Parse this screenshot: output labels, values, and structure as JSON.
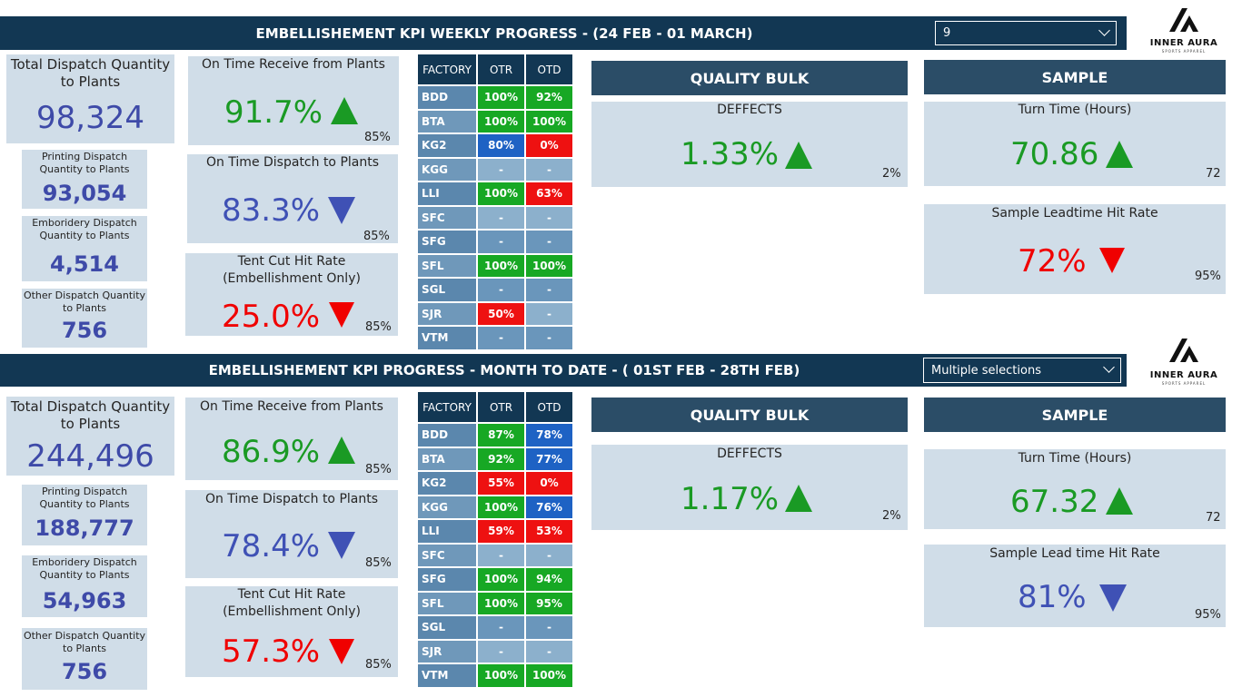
{
  "weekly": {
    "header": "EMBELLISHEMENT KPI  WEEKLY PROGRESS - (24 FEB - 01 MARCH)",
    "slicer": "9",
    "total_dispatch": {
      "title": "Total Dispatch Quantity to Plants",
      "value": "98,324"
    },
    "printing": {
      "title": "Printing Dispatch Quantity to Plants",
      "value": "93,054"
    },
    "embroidery": {
      "title": "Emboridery Dispatch Quantity to Plants",
      "value": "4,514"
    },
    "other": {
      "title": "Other Dispatch Quantity to Plants",
      "value": "756"
    },
    "otr": {
      "title": "On Time Receive from Plants",
      "value": "91.7%",
      "target": "85%",
      "trend": "up"
    },
    "otd": {
      "title": "On Time Dispatch to Plants",
      "value": "83.3%",
      "target": "85%",
      "trend": "down"
    },
    "tent": {
      "title": "Tent Cut Hit Rate (Embellishment Only)",
      "value": "25.0%",
      "target": "85%",
      "trend": "down"
    },
    "table": {
      "headers": [
        "FACTORY",
        "OTR",
        "OTD"
      ],
      "rows": [
        [
          "BDD",
          "100%",
          "92%"
        ],
        [
          "BTA",
          "100%",
          "100%"
        ],
        [
          "KG2",
          "80%",
          "0%"
        ],
        [
          "KGG",
          "-",
          "-"
        ],
        [
          "LLI",
          "100%",
          "63%"
        ],
        [
          "SFC",
          "-",
          "-"
        ],
        [
          "SFG",
          "-",
          "-"
        ],
        [
          "SFL",
          "100%",
          "100%"
        ],
        [
          "SGL",
          "-",
          "-"
        ],
        [
          "SJR",
          "50%",
          "-"
        ],
        [
          "VTM",
          "-",
          "-"
        ]
      ]
    },
    "quality": {
      "head": "QUALITY BULK",
      "title": "DEFFECTS",
      "value": "1.33%",
      "target": "2%"
    },
    "sample": {
      "head": "SAMPLE",
      "turn_title": "Turn Time (Hours)",
      "turn_value": "70.86",
      "turn_target": "72",
      "lead_title": "Sample Leadtime Hit Rate",
      "lead_value": "72%",
      "lead_target": "95%"
    }
  },
  "monthly": {
    "header": "EMBELLISHEMENT KPI  PROGRESS - MONTH TO DATE - ( 01ST FEB - 28TH FEB)",
    "slicer": "Multiple selections",
    "total_dispatch": {
      "title": "Total Dispatch Quantity to Plants",
      "value": "244,496"
    },
    "printing": {
      "title": "Printing Dispatch Quantity to Plants",
      "value": "188,777"
    },
    "embroidery": {
      "title": "Emboridery Dispatch Quantity to Plants",
      "value": "54,963"
    },
    "other": {
      "title": "Other Dispatch Quantity to Plants",
      "value": "756"
    },
    "otr": {
      "title": "On Time Receive from Plants",
      "value": "86.9%",
      "target": "85%",
      "trend": "up"
    },
    "otd": {
      "title": "On Time Dispatch to Plants",
      "value": "78.4%",
      "target": "85%",
      "trend": "down"
    },
    "tent": {
      "title": "Tent Cut Hit Rate (Embellishment Only)",
      "value": "57.3%",
      "target": "85%",
      "trend": "down"
    },
    "table": {
      "headers": [
        "FACTORY",
        "OTR",
        "OTD"
      ],
      "rows": [
        [
          "BDD",
          "87%",
          "78%"
        ],
        [
          "BTA",
          "92%",
          "77%"
        ],
        [
          "KG2",
          "55%",
          "0%"
        ],
        [
          "KGG",
          "100%",
          "76%"
        ],
        [
          "LLI",
          "59%",
          "53%"
        ],
        [
          "SFC",
          "-",
          "-"
        ],
        [
          "SFG",
          "100%",
          "94%"
        ],
        [
          "SFL",
          "100%",
          "95%"
        ],
        [
          "SGL",
          "-",
          "-"
        ],
        [
          "SJR",
          "-",
          "-"
        ],
        [
          "VTM",
          "100%",
          "100%"
        ]
      ]
    },
    "quality": {
      "head": "QUALITY BULK",
      "title": "DEFFECTS",
      "value": "1.17%",
      "target": "2%"
    },
    "sample": {
      "head": "SAMPLE",
      "turn_title": "Turn Time (Hours)",
      "turn_value": "67.32",
      "turn_target": "72",
      "lead_title": "Sample Lead time Hit Rate",
      "lead_value": "81%",
      "lead_target": "95%"
    }
  },
  "logo": {
    "name": "INNER AURA",
    "sub": "SPORTS APPAREL"
  },
  "colors": {
    "header": "#123753",
    "card": "#d0dde8",
    "green": "#1a9a24",
    "red": "#f00000",
    "blue": "#3f51b5"
  }
}
